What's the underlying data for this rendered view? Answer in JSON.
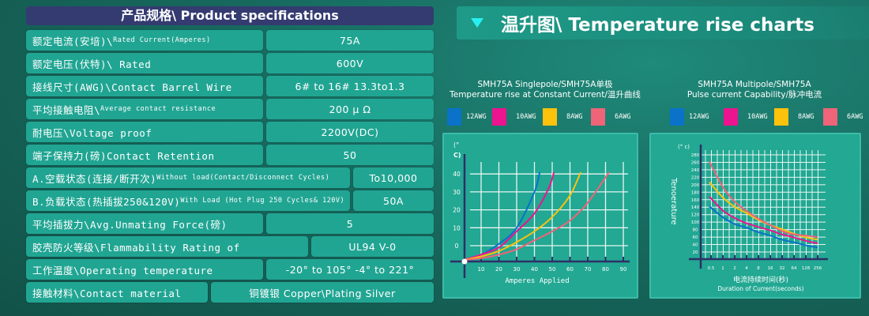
{
  "specs": {
    "title": "产品规格\\ Product specifications",
    "rows": [
      {
        "label": "额定电流(安培)\\",
        "label_small": "Rated Current(Amperes)",
        "value": "75A"
      },
      {
        "label": "额定电压(伏特)\\ Rated",
        "label_small": "",
        "value": "600V"
      },
      {
        "label": "接线尺寸(AWG)\\Contact Barrel Wire",
        "label_small": "",
        "value": "6# to 16#  13.3to1.3"
      },
      {
        "label": "平均接触电阻\\",
        "label_small": "Average contact resistance",
        "value": "200 μ Ω"
      },
      {
        "label": "耐电压\\Voltage proof",
        "label_small": "",
        "value": "2200V(DC)"
      },
      {
        "label": "端子保持力(磅)Contact Retention",
        "label_small": "",
        "value": "50"
      },
      {
        "label": "A.空载状态(连接/断开次)",
        "label_small": "Without load(Contact/Disconnect Cycles)",
        "value": "To10,000"
      },
      {
        "label": "B.负载状态(热插拔250&120V)",
        "label_small": "With Load (Hot Plug 250 Cycles& 120V)",
        "value": "50A"
      },
      {
        "label": "平均插拔力\\Avg.Unmating Force(磅)",
        "label_small": "",
        "value": "5"
      },
      {
        "label": "胶壳防火等级\\Flammability Rating of",
        "label_small": "",
        "value": "UL94 V-0"
      },
      {
        "label": "工作温度\\Operating temperature",
        "label_small": "",
        "value": "-20° to 105°  -4° to 221°"
      },
      {
        "label": "接触材料\\Contact material",
        "label_small": "",
        "value": "铜镀银 Copper\\Plating Silver"
      }
    ]
  },
  "charts_header": {
    "title": "温升图\\ Temperature rise charts",
    "icon": "triangle-down-icon"
  },
  "chart_data": [
    {
      "type": "line",
      "title_line1": "SMH75A Singlepole/SMH75A单极",
      "title_line2": "Temperature rise at Constant Current/温升曲线",
      "xlabel": "Amperes Applied",
      "ylabel_line1": "(°",
      "ylabel_line2": "C)",
      "xticks": [
        10,
        20,
        30,
        40,
        50,
        60,
        70,
        80,
        90
      ],
      "yticks": [
        0,
        10,
        20,
        30,
        40
      ],
      "xlim": [
        0,
        90
      ],
      "grid": true,
      "series": [
        {
          "name": "12AWG",
          "color": "#0a72c9",
          "points": [
            [
              0,
              -8
            ],
            [
              10,
              -5
            ],
            [
              20,
              1
            ],
            [
              30,
              10
            ],
            [
              40,
              30
            ],
            [
              43,
              41
            ]
          ]
        },
        {
          "name": "10AWG",
          "color": "#ec148f",
          "points": [
            [
              0,
              -8
            ],
            [
              10,
              -5
            ],
            [
              20,
              -1
            ],
            [
              30,
              8
            ],
            [
              40,
              18
            ],
            [
              48,
              32
            ],
            [
              51,
              41
            ]
          ]
        },
        {
          "name": "8AWG",
          "color": "#fcc20c",
          "points": [
            [
              0,
              -8
            ],
            [
              10,
              -6
            ],
            [
              20,
              -3
            ],
            [
              30,
              2
            ],
            [
              40,
              8
            ],
            [
              50,
              16
            ],
            [
              60,
              28
            ],
            [
              66,
              41
            ]
          ]
        },
        {
          "name": "6AWG",
          "color": "#ef6479",
          "points": [
            [
              0,
              -8
            ],
            [
              10,
              -7
            ],
            [
              20,
              -5
            ],
            [
              30,
              -2
            ],
            [
              40,
              3
            ],
            [
              50,
              8
            ],
            [
              60,
              14
            ],
            [
              70,
              24
            ],
            [
              82,
              41
            ]
          ]
        }
      ]
    },
    {
      "type": "line",
      "title_line1": "SMH75A  Multipole/SMH75A",
      "title_line2": "Pulse current Capability/脉冲电流",
      "xlabel_cn": "电流持续时间(秒)",
      "xlabel": "Duration of Current(seconds)",
      "ylabel": "Tenoerature",
      "yunit": "(° c)",
      "categories": [
        "0.5",
        "1",
        "2",
        "4",
        "8",
        "16",
        "32",
        "64",
        "128",
        "256"
      ],
      "yticks": [
        20,
        40,
        60,
        80,
        100,
        120,
        140,
        160,
        180,
        200,
        220,
        240,
        260,
        280
      ],
      "ylim": [
        20,
        280
      ],
      "grid": true,
      "series": [
        {
          "name": "12AWG",
          "color": "#0a72c9",
          "values": [
            142,
            113,
            95,
            85,
            73,
            64,
            53,
            46,
            38,
            32
          ]
        },
        {
          "name": "10AWG",
          "color": "#ec148f",
          "values": [
            168,
            131,
            111,
            97,
            87,
            78,
            67,
            59,
            50,
            43
          ]
        },
        {
          "name": "8AWG",
          "color": "#fcc20c",
          "values": [
            207,
            166,
            141,
            124,
            106,
            92,
            81,
            69,
            59,
            53
          ]
        },
        {
          "name": "6AWG",
          "color": "#ef6479",
          "values": [
            262,
            194,
            155,
            130,
            109,
            92,
            76,
            67,
            64,
            60
          ]
        }
      ]
    }
  ]
}
